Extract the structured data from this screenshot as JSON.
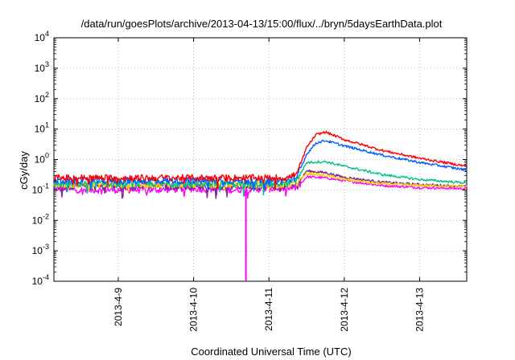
{
  "chart_data": {
    "type": "line",
    "title": "/data/run/goesPlots/archive/2013-04-13/15:00/flux/../bryn/5daysEarthData.plot",
    "xlabel": "Coordinated Universal Time (UTC)",
    "ylabel": "cGy/day",
    "y_scale": "log",
    "ylim": [
      0.0001,
      10000
    ],
    "xlim": [
      "2013-04-08T03:30",
      "2013-04-13T15:00"
    ],
    "grid": true,
    "x_ticks": [
      {
        "date": "2013-04-09T00:00",
        "label": "2013-4-9"
      },
      {
        "date": "2013-04-10T00:00",
        "label": "2013-4-10"
      },
      {
        "date": "2013-04-11T00:00",
        "label": "2013-4-11"
      },
      {
        "date": "2013-04-12T00:00",
        "label": "2013-4-12"
      },
      {
        "date": "2013-04-13T00:00",
        "label": "2013-4-13"
      }
    ],
    "y_ticks": [
      {
        "value": 0.0001,
        "base": "10",
        "exp": "-4"
      },
      {
        "value": 0.001,
        "base": "10",
        "exp": "-3"
      },
      {
        "value": 0.01,
        "base": "10",
        "exp": "-2"
      },
      {
        "value": 0.1,
        "base": "10",
        "exp": "-1"
      },
      {
        "value": 1,
        "base": "10",
        "exp": "0"
      },
      {
        "value": 10,
        "base": "10",
        "exp": "1"
      },
      {
        "value": 100,
        "base": "10",
        "exp": "2"
      },
      {
        "value": 1000,
        "base": "10",
        "exp": "3"
      },
      {
        "value": 10000,
        "base": "10",
        "exp": "4"
      }
    ],
    "series": [
      {
        "color": "#ff00ff",
        "x": [
          "2013-04-08T03:30",
          "2013-04-08T12:00",
          "2013-04-09T00:00",
          "2013-04-09T12:00",
          "2013-04-10T00:00",
          "2013-04-10T12:00",
          "2013-04-11T00:00",
          "2013-04-11T06:00",
          "2013-04-11T09:00",
          "2013-04-11T12:00",
          "2013-04-11T18:00",
          "2013-04-12T00:00",
          "2013-04-12T12:00",
          "2013-04-13T00:00",
          "2013-04-13T15:00"
        ],
        "y": [
          0.11,
          0.1,
          0.1,
          0.1,
          0.11,
          0.1,
          0.11,
          0.11,
          0.12,
          0.27,
          0.25,
          0.2,
          0.14,
          0.12,
          0.11
        ]
      },
      {
        "color": "#7b2c8a",
        "x": [
          "2013-04-08T03:30",
          "2013-04-08T12:00",
          "2013-04-09T00:00",
          "2013-04-09T12:00",
          "2013-04-10T00:00",
          "2013-04-10T12:00",
          "2013-04-11T00:00",
          "2013-04-11T06:00",
          "2013-04-11T09:00",
          "2013-04-11T12:00",
          "2013-04-11T18:00",
          "2013-04-12T00:00",
          "2013-04-12T12:00",
          "2013-04-13T00:00",
          "2013-04-13T15:00"
        ],
        "y": [
          0.13,
          0.13,
          0.13,
          0.13,
          0.13,
          0.13,
          0.13,
          0.13,
          0.15,
          0.42,
          0.37,
          0.26,
          0.18,
          0.15,
          0.13
        ]
      },
      {
        "color": "#ffd000",
        "x": [
          "2013-04-08T03:30",
          "2013-04-08T12:00",
          "2013-04-09T00:00",
          "2013-04-09T12:00",
          "2013-04-10T00:00",
          "2013-04-10T12:00",
          "2013-04-11T00:00",
          "2013-04-11T06:00",
          "2013-04-11T09:00",
          "2013-04-11T12:00",
          "2013-04-11T18:00",
          "2013-04-12T00:00",
          "2013-04-12T12:00",
          "2013-04-13T00:00",
          "2013-04-13T15:00"
        ],
        "y": [
          0.15,
          0.15,
          0.15,
          0.15,
          0.15,
          0.15,
          0.15,
          0.15,
          0.17,
          0.35,
          0.3,
          0.22,
          0.16,
          0.14,
          0.13
        ]
      },
      {
        "color": "#00c090",
        "x": [
          "2013-04-08T03:30",
          "2013-04-08T12:00",
          "2013-04-09T00:00",
          "2013-04-09T12:00",
          "2013-04-10T00:00",
          "2013-04-10T12:00",
          "2013-04-11T00:00",
          "2013-04-11T06:00",
          "2013-04-11T09:00",
          "2013-04-11T12:00",
          "2013-04-11T18:00",
          "2013-04-12T00:00",
          "2013-04-12T12:00",
          "2013-04-13T00:00",
          "2013-04-13T15:00"
        ],
        "y": [
          0.16,
          0.16,
          0.16,
          0.16,
          0.16,
          0.16,
          0.16,
          0.16,
          0.22,
          0.8,
          0.85,
          0.6,
          0.32,
          0.22,
          0.17
        ]
      },
      {
        "color": "#0060ff",
        "x": [
          "2013-04-08T03:30",
          "2013-04-08T12:00",
          "2013-04-09T00:00",
          "2013-04-09T12:00",
          "2013-04-10T00:00",
          "2013-04-10T12:00",
          "2013-04-11T00:00",
          "2013-04-11T06:00",
          "2013-04-11T09:00",
          "2013-04-11T12:00",
          "2013-04-11T15:00",
          "2013-04-11T18:00",
          "2013-04-12T00:00",
          "2013-04-12T12:00",
          "2013-04-13T00:00",
          "2013-04-13T15:00"
        ],
        "y": [
          0.2,
          0.2,
          0.2,
          0.2,
          0.2,
          0.2,
          0.2,
          0.2,
          0.28,
          1.5,
          3.5,
          4.2,
          2.8,
          1.4,
          0.8,
          0.45
        ]
      },
      {
        "color": "#ff0000",
        "x": [
          "2013-04-08T03:30",
          "2013-04-08T12:00",
          "2013-04-09T00:00",
          "2013-04-09T12:00",
          "2013-04-10T00:00",
          "2013-04-10T12:00",
          "2013-04-11T00:00",
          "2013-04-11T06:00",
          "2013-04-11T09:00",
          "2013-04-11T12:00",
          "2013-04-11T15:00",
          "2013-04-11T18:00",
          "2013-04-12T00:00",
          "2013-04-12T12:00",
          "2013-04-13T00:00",
          "2013-04-13T15:00"
        ],
        "y": [
          0.25,
          0.25,
          0.25,
          0.25,
          0.25,
          0.25,
          0.25,
          0.25,
          0.35,
          2.5,
          6.5,
          8.0,
          4.5,
          2.0,
          1.1,
          0.6
        ]
      }
    ],
    "annotations": [
      {
        "type": "dropout",
        "color": "#ff00ff",
        "x": "2013-04-10T16:40",
        "y_from": 0.1,
        "y_to": 0.0001
      }
    ]
  }
}
